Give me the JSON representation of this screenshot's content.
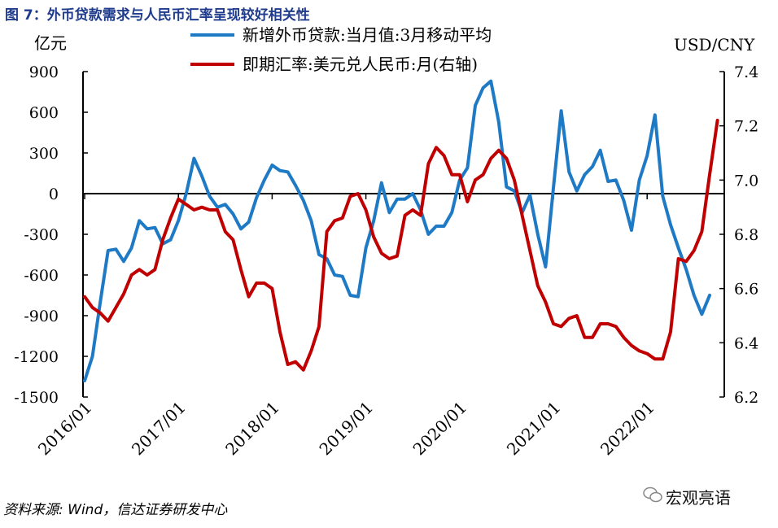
{
  "title": "图 7：外币贷款需求与人民币汇率呈现较好相关性",
  "source": "资料来源: Wind，信达证券研发中心",
  "watermark": "宏观亮语",
  "chart_data": {
    "type": "line",
    "left_unit": "亿元",
    "right_unit": "USD/CNY",
    "y_left": {
      "min": -1500,
      "max": 900,
      "ticks": [
        900,
        600,
        300,
        0,
        -300,
        -600,
        -900,
        -1200,
        -1500
      ]
    },
    "y_right": {
      "min": 6.2,
      "max": 7.4,
      "ticks": [
        "7.4",
        "7.2",
        "7.0",
        "6.8",
        "6.6",
        "6.4",
        "6.2"
      ]
    },
    "x_ticks": [
      "2016/01",
      "2017/01",
      "2018/01",
      "2019/01",
      "2020/01",
      "2021/01",
      "2022/01"
    ],
    "x_start": "2016/01",
    "series": [
      {
        "name": "新增外币贷款:当月值:3月移动平均",
        "axis": "left",
        "color": "#1f7ac6",
        "values": [
          -1380,
          -1200,
          -800,
          -420,
          -410,
          -500,
          -400,
          -200,
          -260,
          -250,
          -370,
          -340,
          -200,
          0,
          260,
          130,
          -20,
          -100,
          -80,
          -150,
          -260,
          -210,
          -30,
          100,
          210,
          170,
          160,
          60,
          -50,
          -200,
          -450,
          -480,
          -600,
          -610,
          -750,
          -760,
          -400,
          -200,
          80,
          -140,
          -40,
          -40,
          0,
          -120,
          -300,
          -240,
          -240,
          -140,
          100,
          190,
          650,
          780,
          830,
          530,
          50,
          20,
          -140,
          -10,
          -300,
          -540,
          40,
          610,
          160,
          20,
          140,
          200,
          320,
          90,
          100,
          -50,
          -270,
          100,
          280,
          580,
          -20,
          -230,
          -400,
          -560,
          -750,
          -890,
          -750
        ]
      },
      {
        "name": "即期汇率:美元兑人民币:月(右轴)",
        "axis": "right",
        "color": "#c00000",
        "values": [
          6.57,
          6.53,
          6.51,
          6.48,
          6.53,
          6.58,
          6.65,
          6.67,
          6.65,
          6.67,
          6.78,
          6.86,
          6.93,
          6.91,
          6.89,
          6.9,
          6.89,
          6.89,
          6.81,
          6.78,
          6.67,
          6.57,
          6.62,
          6.62,
          6.6,
          6.44,
          6.32,
          6.33,
          6.3,
          6.37,
          6.46,
          6.81,
          6.85,
          6.86,
          6.94,
          6.95,
          6.89,
          6.79,
          6.73,
          6.71,
          6.72,
          6.87,
          6.89,
          6.87,
          7.06,
          7.12,
          7.09,
          7.02,
          7.02,
          6.92,
          7.0,
          7.02,
          7.08,
          7.11,
          7.08,
          7.0,
          6.87,
          6.74,
          6.61,
          6.55,
          6.47,
          6.46,
          6.49,
          6.5,
          6.42,
          6.42,
          6.47,
          6.47,
          6.46,
          6.42,
          6.39,
          6.37,
          6.36,
          6.34,
          6.34,
          6.44,
          6.71,
          6.7,
          6.74,
          6.81,
          7.02,
          7.22
        ]
      }
    ]
  }
}
